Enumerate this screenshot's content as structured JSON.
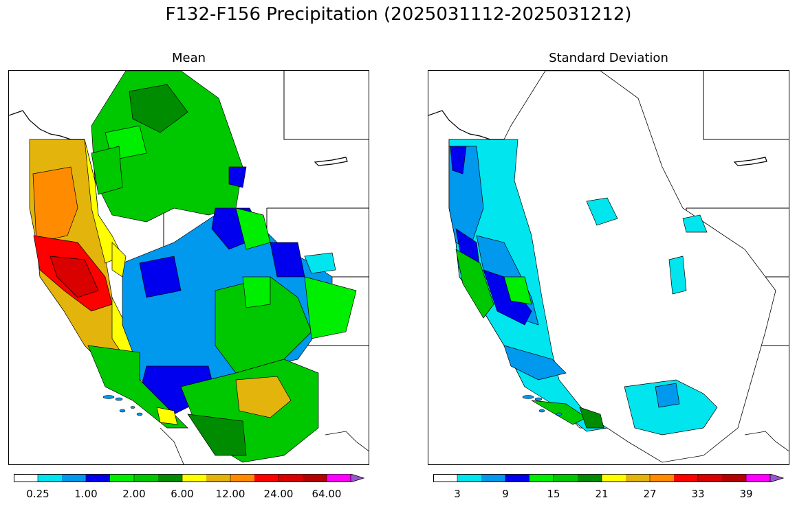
{
  "figure": {
    "title": "F132-F156 Precipitation (2025031112-2025031212)"
  },
  "panels": [
    {
      "title": "Mean",
      "colorbar": {
        "colors": [
          "#ffffff",
          "#00e5ee",
          "#0099ee",
          "#0000ee",
          "#00ee00",
          "#00c800",
          "#008c00",
          "#ffff00",
          "#e3b50c",
          "#ff8c00",
          "#ff0000",
          "#d90000",
          "#b40000",
          "#ff00ff",
          "#9955cc"
        ],
        "tick_labels": [
          "0.25",
          "1.00",
          "2.00",
          "6.00",
          "12.00",
          "24.00",
          "64.00"
        ],
        "extend": "max"
      }
    },
    {
      "title": "Standard Deviation",
      "colorbar": {
        "colors": [
          "#ffffff",
          "#00e5ee",
          "#0099ee",
          "#0000ee",
          "#00ee00",
          "#00c800",
          "#008c00",
          "#ffff00",
          "#e3b50c",
          "#ff8c00",
          "#ff0000",
          "#d90000",
          "#b40000",
          "#ff00ff",
          "#9955cc"
        ],
        "tick_labels": [
          "3",
          "9",
          "15",
          "21",
          "27",
          "33",
          "39"
        ],
        "extend": "max"
      }
    }
  ]
}
